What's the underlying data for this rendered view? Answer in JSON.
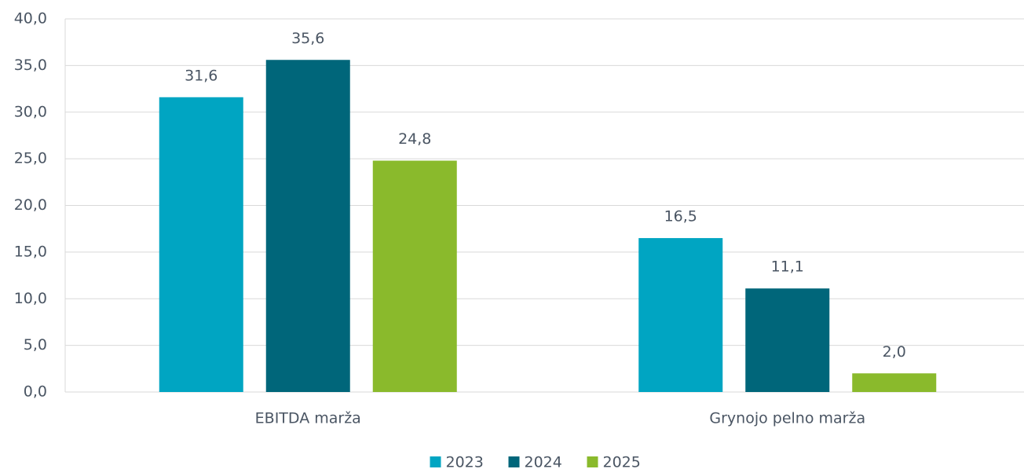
{
  "chart_data": {
    "type": "bar",
    "categories": [
      "EBITDA marža",
      "Grynojo pelno marža"
    ],
    "series": [
      {
        "name": "2023",
        "color": "#00a5c2",
        "values": [
          31.6,
          16.5
        ],
        "value_labels": [
          "31,6",
          "16,5"
        ]
      },
      {
        "name": "2024",
        "color": "#00667a",
        "values": [
          35.6,
          11.1
        ],
        "value_labels": [
          "35,6",
          "11,1"
        ]
      },
      {
        "name": "2025",
        "color": "#8aba2c",
        "values": [
          24.8,
          2.0
        ],
        "value_labels": [
          "24,8",
          "2,0"
        ]
      }
    ],
    "ylim": [
      0,
      40
    ],
    "yticks": [
      {
        "value": 0,
        "label": "0,0"
      },
      {
        "value": 5,
        "label": "5,0"
      },
      {
        "value": 10,
        "label": "10,0"
      },
      {
        "value": 15,
        "label": "15,0"
      },
      {
        "value": 20,
        "label": "20,0"
      },
      {
        "value": 25,
        "label": "25,0"
      },
      {
        "value": 30,
        "label": "30,0"
      },
      {
        "value": 35,
        "label": "35,0"
      },
      {
        "value": 40,
        "label": "40,0"
      }
    ],
    "grid": true,
    "legend": "bottom"
  }
}
